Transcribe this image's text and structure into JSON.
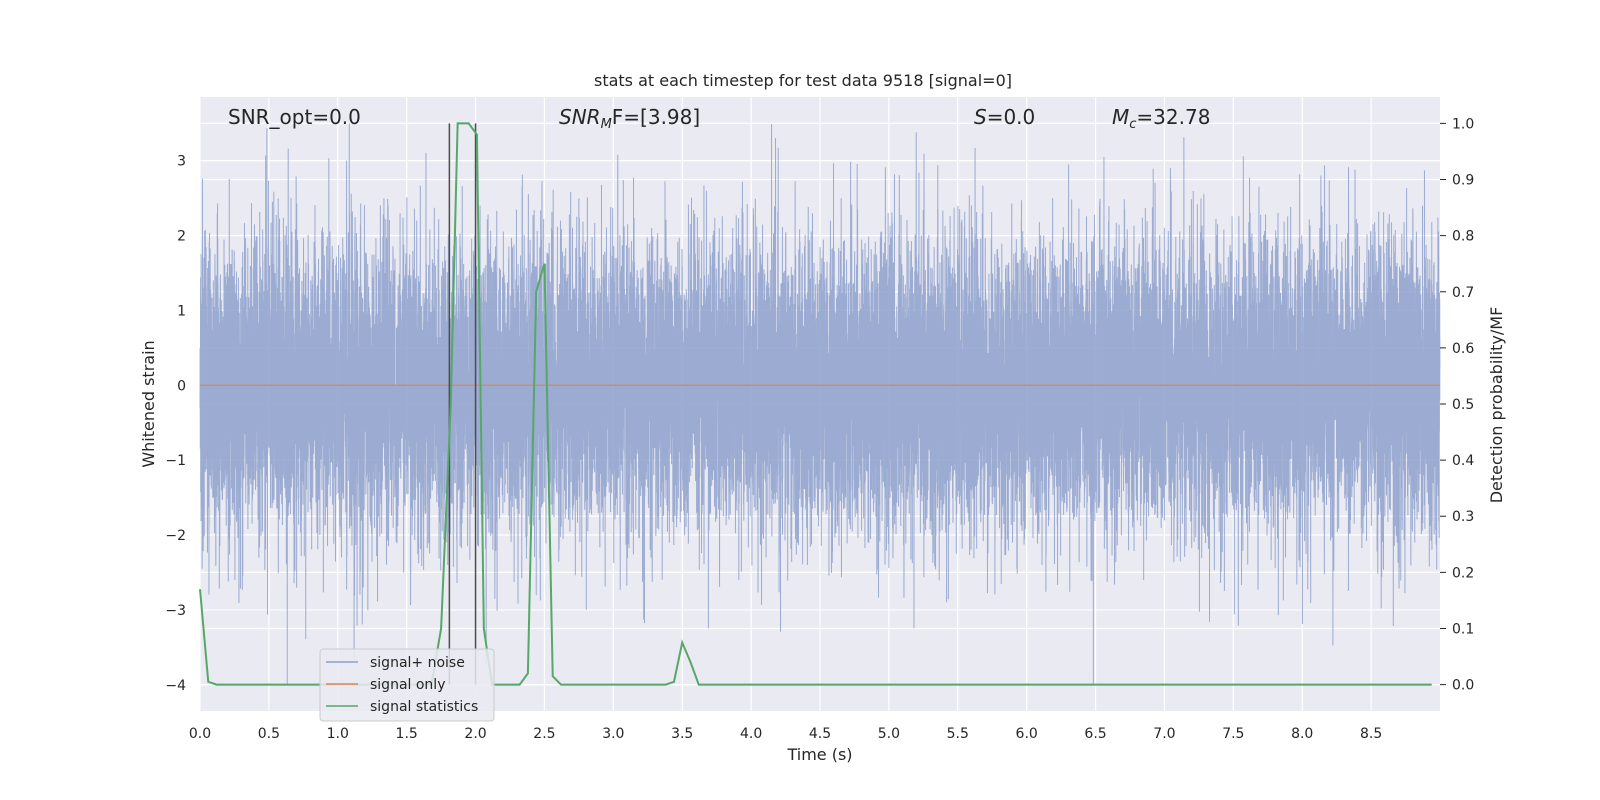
{
  "chart_data": {
    "type": "line",
    "title": "stats at each timestep for test data 9518 [signal=0]",
    "xlabel": "Time (s)",
    "ylabel": "Whitened strain",
    "y2label": "Detection probability/MF",
    "xlim": [
      0.0,
      9.0
    ],
    "ylim": [
      -4.35,
      3.85
    ],
    "y2lim": [
      -0.047,
      1.047
    ],
    "xticks": [
      "0.0",
      "0.5",
      "1.0",
      "1.5",
      "2.0",
      "2.5",
      "3.0",
      "3.5",
      "4.0",
      "4.5",
      "5.0",
      "5.5",
      "6.0",
      "6.5",
      "7.0",
      "7.5",
      "8.0",
      "8.5"
    ],
    "yticks": [
      "−4",
      "−3",
      "−2",
      "−1",
      "0",
      "1",
      "2",
      "3"
    ],
    "y2ticks": [
      "0.0",
      "0.1",
      "0.2",
      "0.3",
      "0.4",
      "0.5",
      "0.6",
      "0.7",
      "0.8",
      "0.9",
      "1.0"
    ],
    "annotations": {
      "snr_opt": "SNR_opt=0.0",
      "snr_mf_base": "SNR",
      "snr_mf_sub": "M",
      "snr_mf_rest": "F=[3.98]",
      "s_sym": "S",
      "s_rest": "=0.0",
      "mc_base": "M",
      "mc_sub": "c",
      "mc_rest": "=32.78"
    },
    "vlines_x": [
      1.81,
      2.0
    ],
    "series": [
      {
        "name": "signal+ noise",
        "color": "#8da0cb",
        "sample_rate_hz": 2048,
        "sigma": 0.95,
        "mean": 0.0
      },
      {
        "name": "signal only",
        "color": "#dd8452",
        "x": [
          0.0,
          9.0
        ],
        "y": [
          0.0,
          0.0
        ]
      },
      {
        "name": "signal statistics",
        "color": "#55a868",
        "axis": "right",
        "x": [
          0.0,
          0.06,
          0.12,
          1.68,
          1.75,
          1.82,
          1.87,
          1.95,
          2.01,
          2.06,
          2.12,
          2.32,
          2.38,
          2.44,
          2.5,
          2.56,
          2.62,
          3.38,
          3.44,
          3.5,
          3.56,
          3.62,
          8.94
        ],
        "y": [
          0.17,
          0.005,
          0.0,
          0.0,
          0.1,
          0.5,
          1.0,
          1.0,
          0.98,
          0.1,
          0.0,
          0.0,
          0.02,
          0.7,
          0.75,
          0.015,
          0.0,
          0.0,
          0.005,
          0.075,
          0.04,
          0.0,
          0.0
        ]
      }
    ],
    "legend": {
      "position": "bottom-left",
      "entries": [
        "signal+ noise",
        "signal only",
        "signal statistics"
      ]
    },
    "grid": true
  }
}
